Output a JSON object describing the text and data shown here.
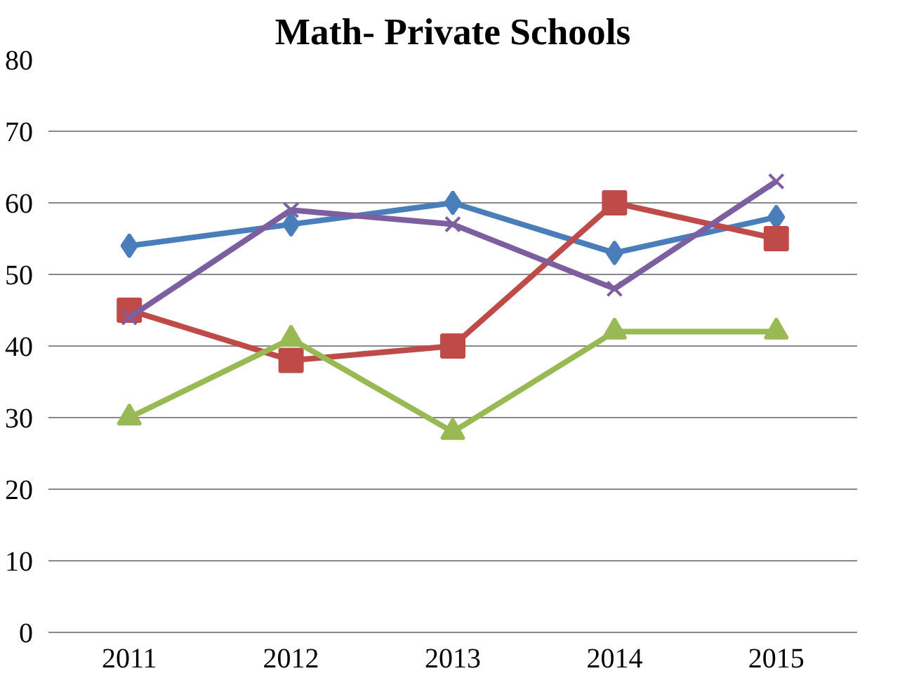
{
  "chart_data": {
    "type": "line",
    "title": "Math- Private Schools",
    "categories": [
      "2011",
      "2012",
      "2013",
      "2014",
      "2015"
    ],
    "series": [
      {
        "color": "#4a7ebb",
        "marker": "diamond",
        "values": [
          54,
          57,
          60,
          53,
          58
        ]
      },
      {
        "color": "#be4b48",
        "marker": "square",
        "values": [
          45,
          38,
          40,
          60,
          55
        ]
      },
      {
        "color": "#98b954",
        "marker": "triangle",
        "values": [
          30,
          41,
          28,
          42,
          42
        ]
      },
      {
        "color": "#7d5fa0",
        "marker": "cross",
        "values": [
          44,
          59,
          57,
          48,
          63
        ]
      }
    ],
    "ylim": [
      0,
      80
    ],
    "yticks": [
      0,
      10,
      20,
      30,
      40,
      50,
      60,
      70,
      80
    ],
    "grid": "y"
  }
}
